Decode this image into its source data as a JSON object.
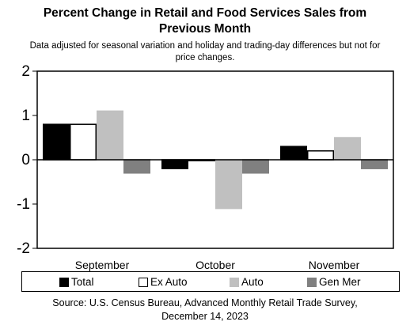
{
  "header": {
    "title_line1": "Percent Change in Retail and Food Services Sales from",
    "title_line2": "Previous Month",
    "subtitle_line1": "Data adjusted for seasonal variation and holiday and trading-day differences but not for",
    "subtitle_line2": "price changes."
  },
  "footer": {
    "source_line1": "Source: U.S. Census Bureau, Advanced Monthly Retail Trade Survey,",
    "source_line2": "December 14, 2023"
  },
  "chart_data": {
    "type": "bar",
    "categories": [
      "September",
      "October",
      "November"
    ],
    "series": [
      {
        "name": "Total",
        "values": [
          0.8,
          -0.2,
          0.3
        ],
        "color": "#000000",
        "border": "#000000"
      },
      {
        "name": "Ex Auto",
        "values": [
          0.8,
          0.0,
          0.2
        ],
        "color": "#ffffff",
        "border": "#000000"
      },
      {
        "name": "Auto",
        "values": [
          1.1,
          -1.1,
          0.5
        ],
        "color": "#c0c0c0",
        "border": "#c0c0c0"
      },
      {
        "name": "Gen Mer",
        "values": [
          -0.3,
          -0.3,
          -0.2
        ],
        "color": "#808080",
        "border": "#808080"
      }
    ],
    "ylim": [
      -2,
      2
    ],
    "yticks": [
      "2",
      "1",
      "0",
      "-1",
      "-2"
    ],
    "ytick_values": [
      2,
      1,
      0,
      -1,
      -2
    ],
    "grid": false,
    "legend_position": "bottom"
  }
}
